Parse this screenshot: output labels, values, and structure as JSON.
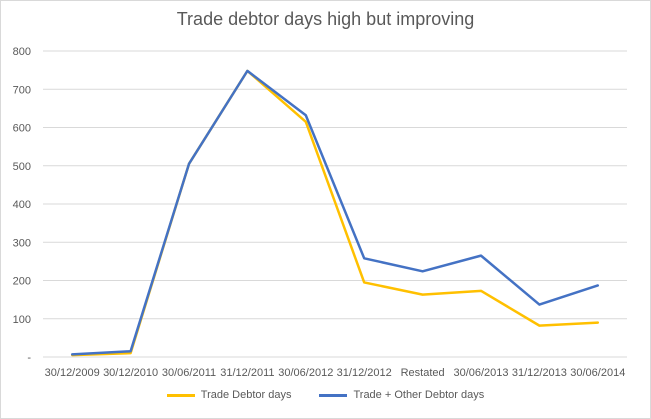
{
  "chart_data": {
    "type": "line",
    "title": "Trade debtor days high but improving",
    "xlabel": "",
    "ylabel": "",
    "x": [
      "30/12/2009",
      "30/12/2010",
      "30/06/2011",
      "31/12/2011",
      "30/06/2012",
      "31/12/2012",
      "Restated",
      "30/06/2013",
      "31/12/2013",
      "30/06/2014"
    ],
    "yticks": [
      "-",
      "100",
      "200",
      "300",
      "400",
      "500",
      "600",
      "700",
      "800"
    ],
    "ylim": [
      0,
      800
    ],
    "grid": true,
    "legend_position": "bottom",
    "series": [
      {
        "name": "Trade Debtor days",
        "color": "#FFC000",
        "values": [
          5,
          10,
          505,
          748,
          615,
          195,
          163,
          173,
          82,
          90
        ]
      },
      {
        "name": "Trade + Other Debtor days",
        "color": "#4472C4",
        "values": [
          7,
          15,
          505,
          748,
          632,
          258,
          224,
          265,
          137,
          187
        ]
      }
    ]
  }
}
